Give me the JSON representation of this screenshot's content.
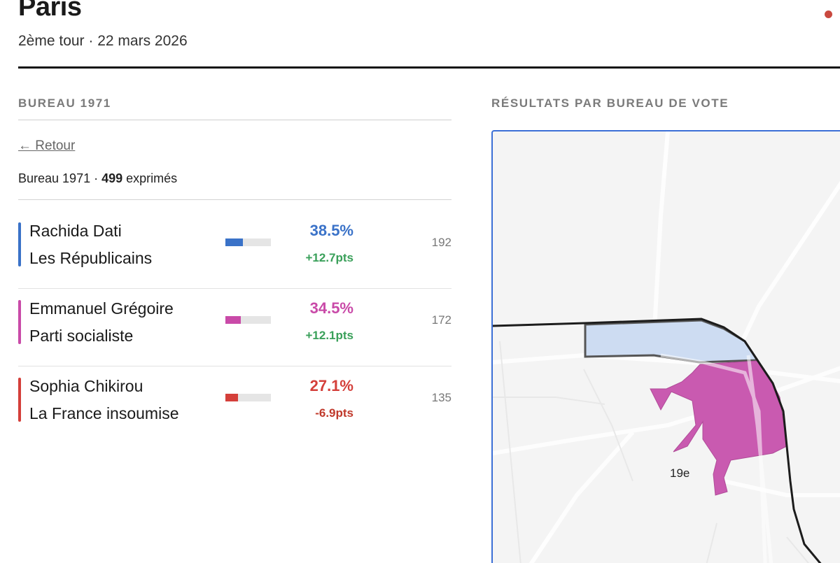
{
  "header": {
    "title": "Paris",
    "subtitle": "2ème tour · 22 mars 2026"
  },
  "left_panel": {
    "section_label": "BUREAU 1971",
    "back_label": "← Retour",
    "bureau_prefix": "Bureau 1971 · ",
    "expressed_count": "499",
    "expressed_suffix": " exprimés",
    "candidates": [
      {
        "name": "Rachida Dati",
        "party": "Les Républicains",
        "percent": "38.5%",
        "percent_value": 38.5,
        "delta": "+12.7pts",
        "votes": "192",
        "color": "#3a72c8",
        "delta_color": "#3aa05a"
      },
      {
        "name": "Emmanuel Grégoire",
        "party": "Parti socialiste",
        "percent": "34.5%",
        "percent_value": 34.5,
        "delta": "+12.1pts",
        "votes": "172",
        "color": "#c94aa8",
        "delta_color": "#3aa05a"
      },
      {
        "name": "Sophia Chikirou",
        "party": "La France insoumise",
        "percent": "27.1%",
        "percent_value": 27.1,
        "delta": "-6.9pts",
        "votes": "135",
        "color": "#d43f3a",
        "delta_color": "#c0392b"
      }
    ]
  },
  "right_panel": {
    "section_label": "RÉSULTATS PAR BUREAU DE VOTE",
    "map_arrondissement_label": "19e"
  },
  "colors": {
    "live_dot": "#c9493f",
    "map_border": "#3b6fd6",
    "republicains_fill": "#cddcf2",
    "socialiste_fill": "#c95ab0"
  }
}
